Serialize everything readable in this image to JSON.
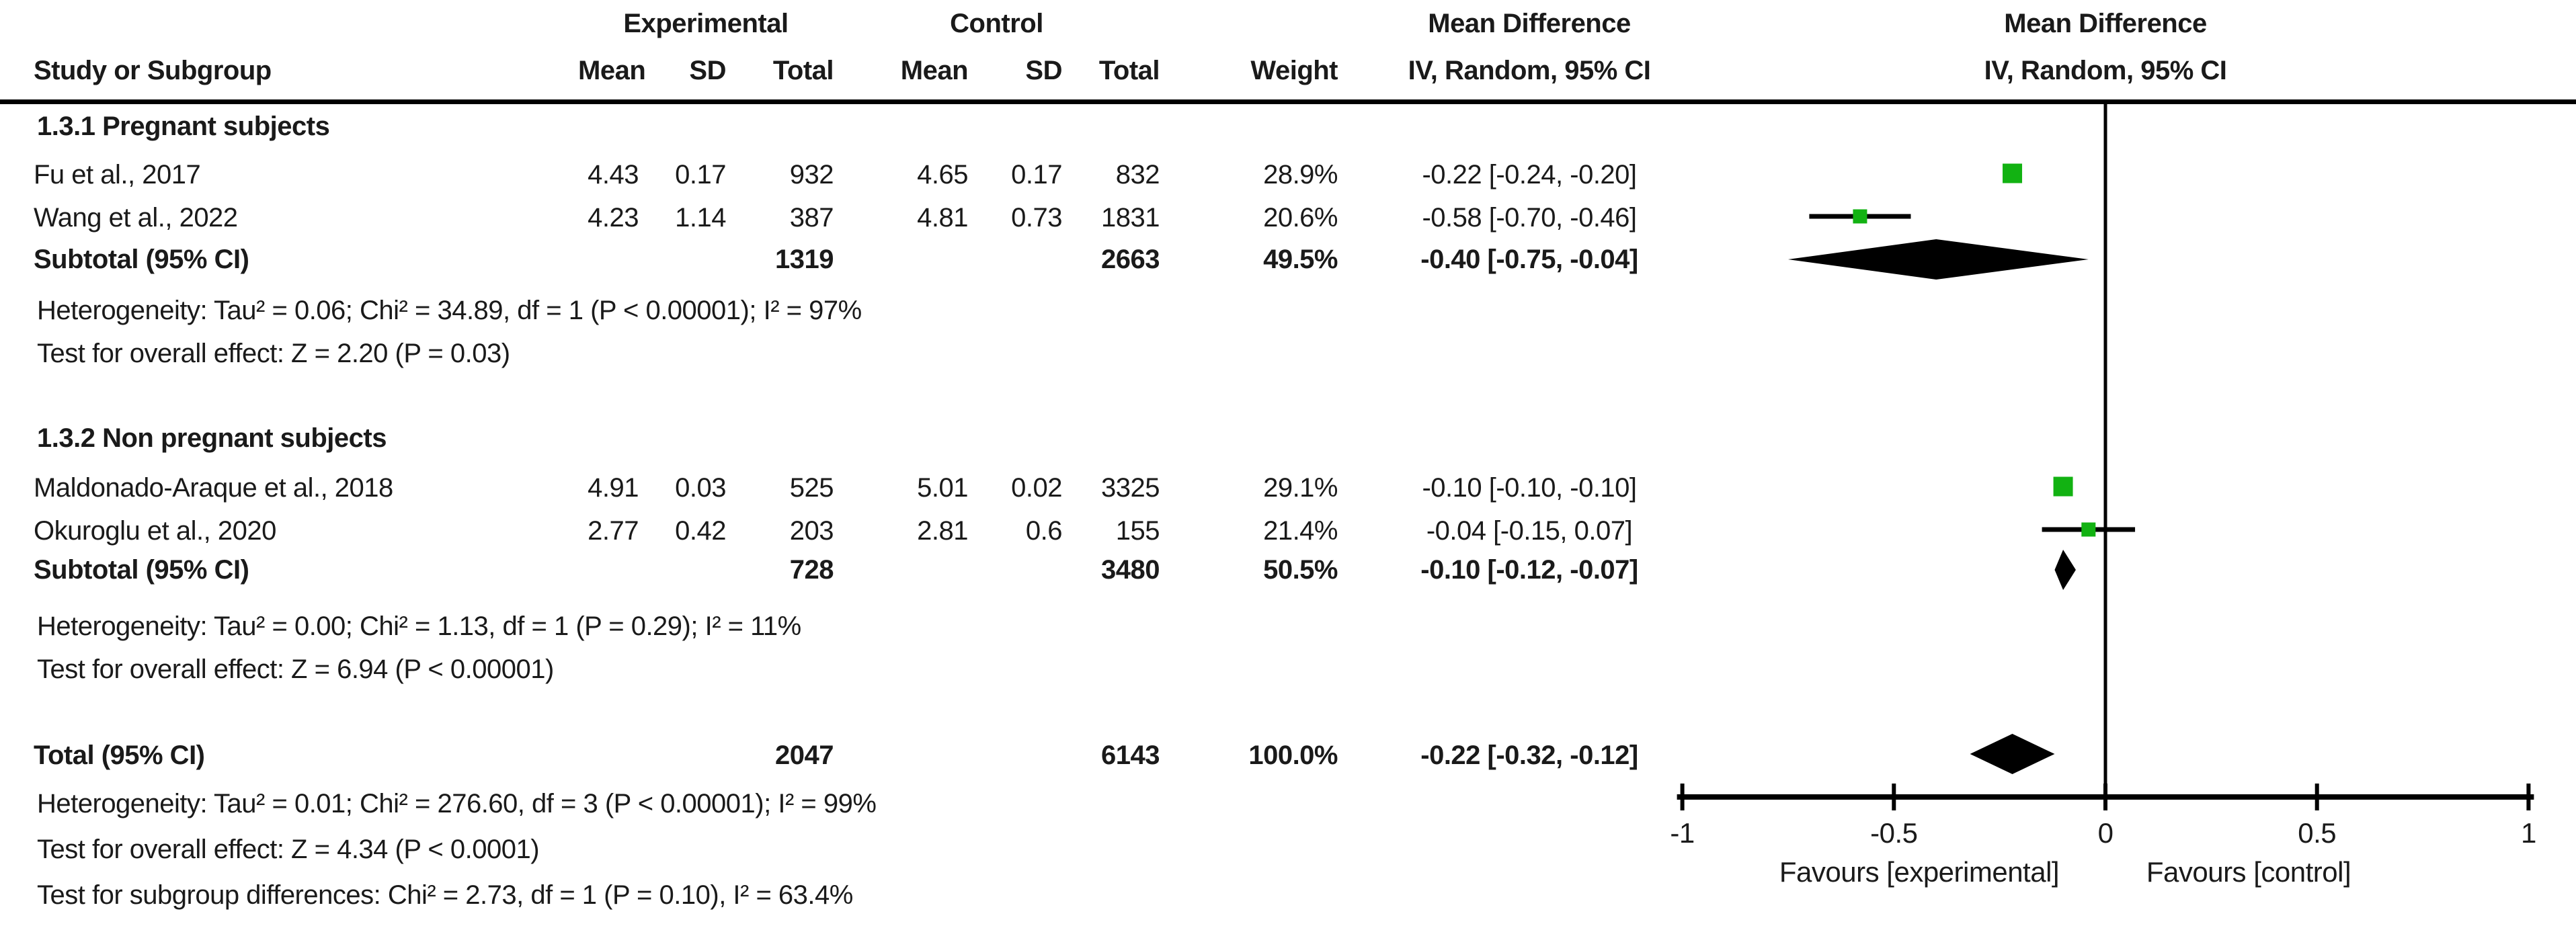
{
  "table": {
    "headers": {
      "experimental": "Experimental",
      "control": "Control",
      "mean_difference": "Mean Difference",
      "study": "Study or Subgroup",
      "mean": "Mean",
      "sd": "SD",
      "total": "Total",
      "weight": "Weight",
      "effect": "IV, Random, 95% CI"
    },
    "plot_header": {
      "line1": "Mean Difference",
      "line2": "IV, Random, 95% CI"
    },
    "groups": [
      {
        "title": "1.3.1 Pregnant subjects",
        "studies": [
          {
            "name": "Fu et al., 2017",
            "exp_mean": "4.43",
            "exp_sd": "0.17",
            "exp_total": "932",
            "ctrl_mean": "4.65",
            "ctrl_sd": "0.17",
            "ctrl_total": "832",
            "weight": "28.9%",
            "md_ci": "-0.22 [-0.24, -0.20]"
          },
          {
            "name": "Wang et al., 2022",
            "exp_mean": "4.23",
            "exp_sd": "1.14",
            "exp_total": "387",
            "ctrl_mean": "4.81",
            "ctrl_sd": "0.73",
            "ctrl_total": "1831",
            "weight": "20.6%",
            "md_ci": "-0.58 [-0.70, -0.46]"
          }
        ],
        "subtotal": {
          "label": "Subtotal (95% CI)",
          "exp_total": "1319",
          "ctrl_total": "2663",
          "weight": "49.5%",
          "md_ci": "-0.40 [-0.75, -0.04]"
        },
        "heterogeneity": "Heterogeneity: Tau² = 0.06; Chi² = 34.89, df = 1 (P < 0.00001); I² = 97%",
        "overall_effect": "Test for overall effect: Z = 2.20 (P = 0.03)"
      },
      {
        "title": "1.3.2 Non pregnant subjects",
        "studies": [
          {
            "name": "Maldonado-Araque et al., 2018",
            "exp_mean": "4.91",
            "exp_sd": "0.03",
            "exp_total": "525",
            "ctrl_mean": "5.01",
            "ctrl_sd": "0.02",
            "ctrl_total": "3325",
            "weight": "29.1%",
            "md_ci": "-0.10 [-0.10, -0.10]"
          },
          {
            "name": "Okuroglu et al., 2020",
            "exp_mean": "2.77",
            "exp_sd": "0.42",
            "exp_total": "203",
            "ctrl_mean": "2.81",
            "ctrl_sd": "0.6",
            "ctrl_total": "155",
            "weight": "21.4%",
            "md_ci": "-0.04 [-0.15, 0.07]"
          }
        ],
        "subtotal": {
          "label": "Subtotal (95% CI)",
          "exp_total": "728",
          "ctrl_total": "3480",
          "weight": "50.5%",
          "md_ci": "-0.10 [-0.12, -0.07]"
        },
        "heterogeneity": "Heterogeneity: Tau² = 0.00; Chi² = 1.13, df = 1 (P = 0.29); I² = 11%",
        "overall_effect": "Test for overall effect: Z = 6.94 (P < 0.00001)"
      }
    ],
    "total": {
      "label": "Total (95% CI)",
      "exp_total": "2047",
      "ctrl_total": "6143",
      "weight": "100.0%",
      "md_ci": "-0.22 [-0.32, -0.12]"
    },
    "total_heterogeneity": "Heterogeneity: Tau² = 0.01; Chi² = 276.60, df = 3 (P < 0.00001); I² = 99%",
    "total_overall_effect": "Test for overall effect: Z = 4.34 (P < 0.0001)",
    "subgroup_differences": "Test for subgroup differences: Chi² = 2.73, df = 1 (P = 0.10), I² = 63.4%"
  },
  "chart_data": {
    "type": "forest",
    "title": "Mean Difference, IV, Random, 95% CI",
    "axis": {
      "min": -1,
      "max": 1,
      "ticks": [
        -1,
        -0.5,
        0,
        0.5,
        1
      ],
      "zero_line": 0
    },
    "favours_left": "Favours [experimental]",
    "favours_right": "Favours [control]",
    "marker_color": "#12B212",
    "line_color": "#000000",
    "groups": [
      {
        "name": "1.3.1 Pregnant subjects",
        "studies": [
          {
            "key": "g0s0",
            "name": "Fu et al., 2017",
            "md": -0.22,
            "ci_low": -0.24,
            "ci_high": -0.2,
            "weight": 28.9
          },
          {
            "key": "g0s1",
            "name": "Wang et al., 2022",
            "md": -0.58,
            "ci_low": -0.7,
            "ci_high": -0.46,
            "weight": 20.6
          }
        ],
        "subtotal": {
          "key": "sub0",
          "md": -0.4,
          "ci_low": -0.75,
          "ci_high": -0.04,
          "weight": 49.5
        }
      },
      {
        "name": "1.3.2 Non pregnant subjects",
        "studies": [
          {
            "key": "g1s0",
            "name": "Maldonado-Araque et al., 2018",
            "md": -0.1,
            "ci_low": -0.1,
            "ci_high": -0.1,
            "weight": 29.1
          },
          {
            "key": "g1s1",
            "name": "Okuroglu et al., 2020",
            "md": -0.04,
            "ci_low": -0.15,
            "ci_high": 0.07,
            "weight": 21.4
          }
        ],
        "subtotal": {
          "key": "sub1",
          "md": -0.1,
          "ci_low": -0.12,
          "ci_high": -0.07,
          "weight": 50.5
        }
      }
    ],
    "total": {
      "key": "total",
      "md": -0.22,
      "ci_low": -0.32,
      "ci_high": -0.12,
      "weight": 100.0
    }
  }
}
